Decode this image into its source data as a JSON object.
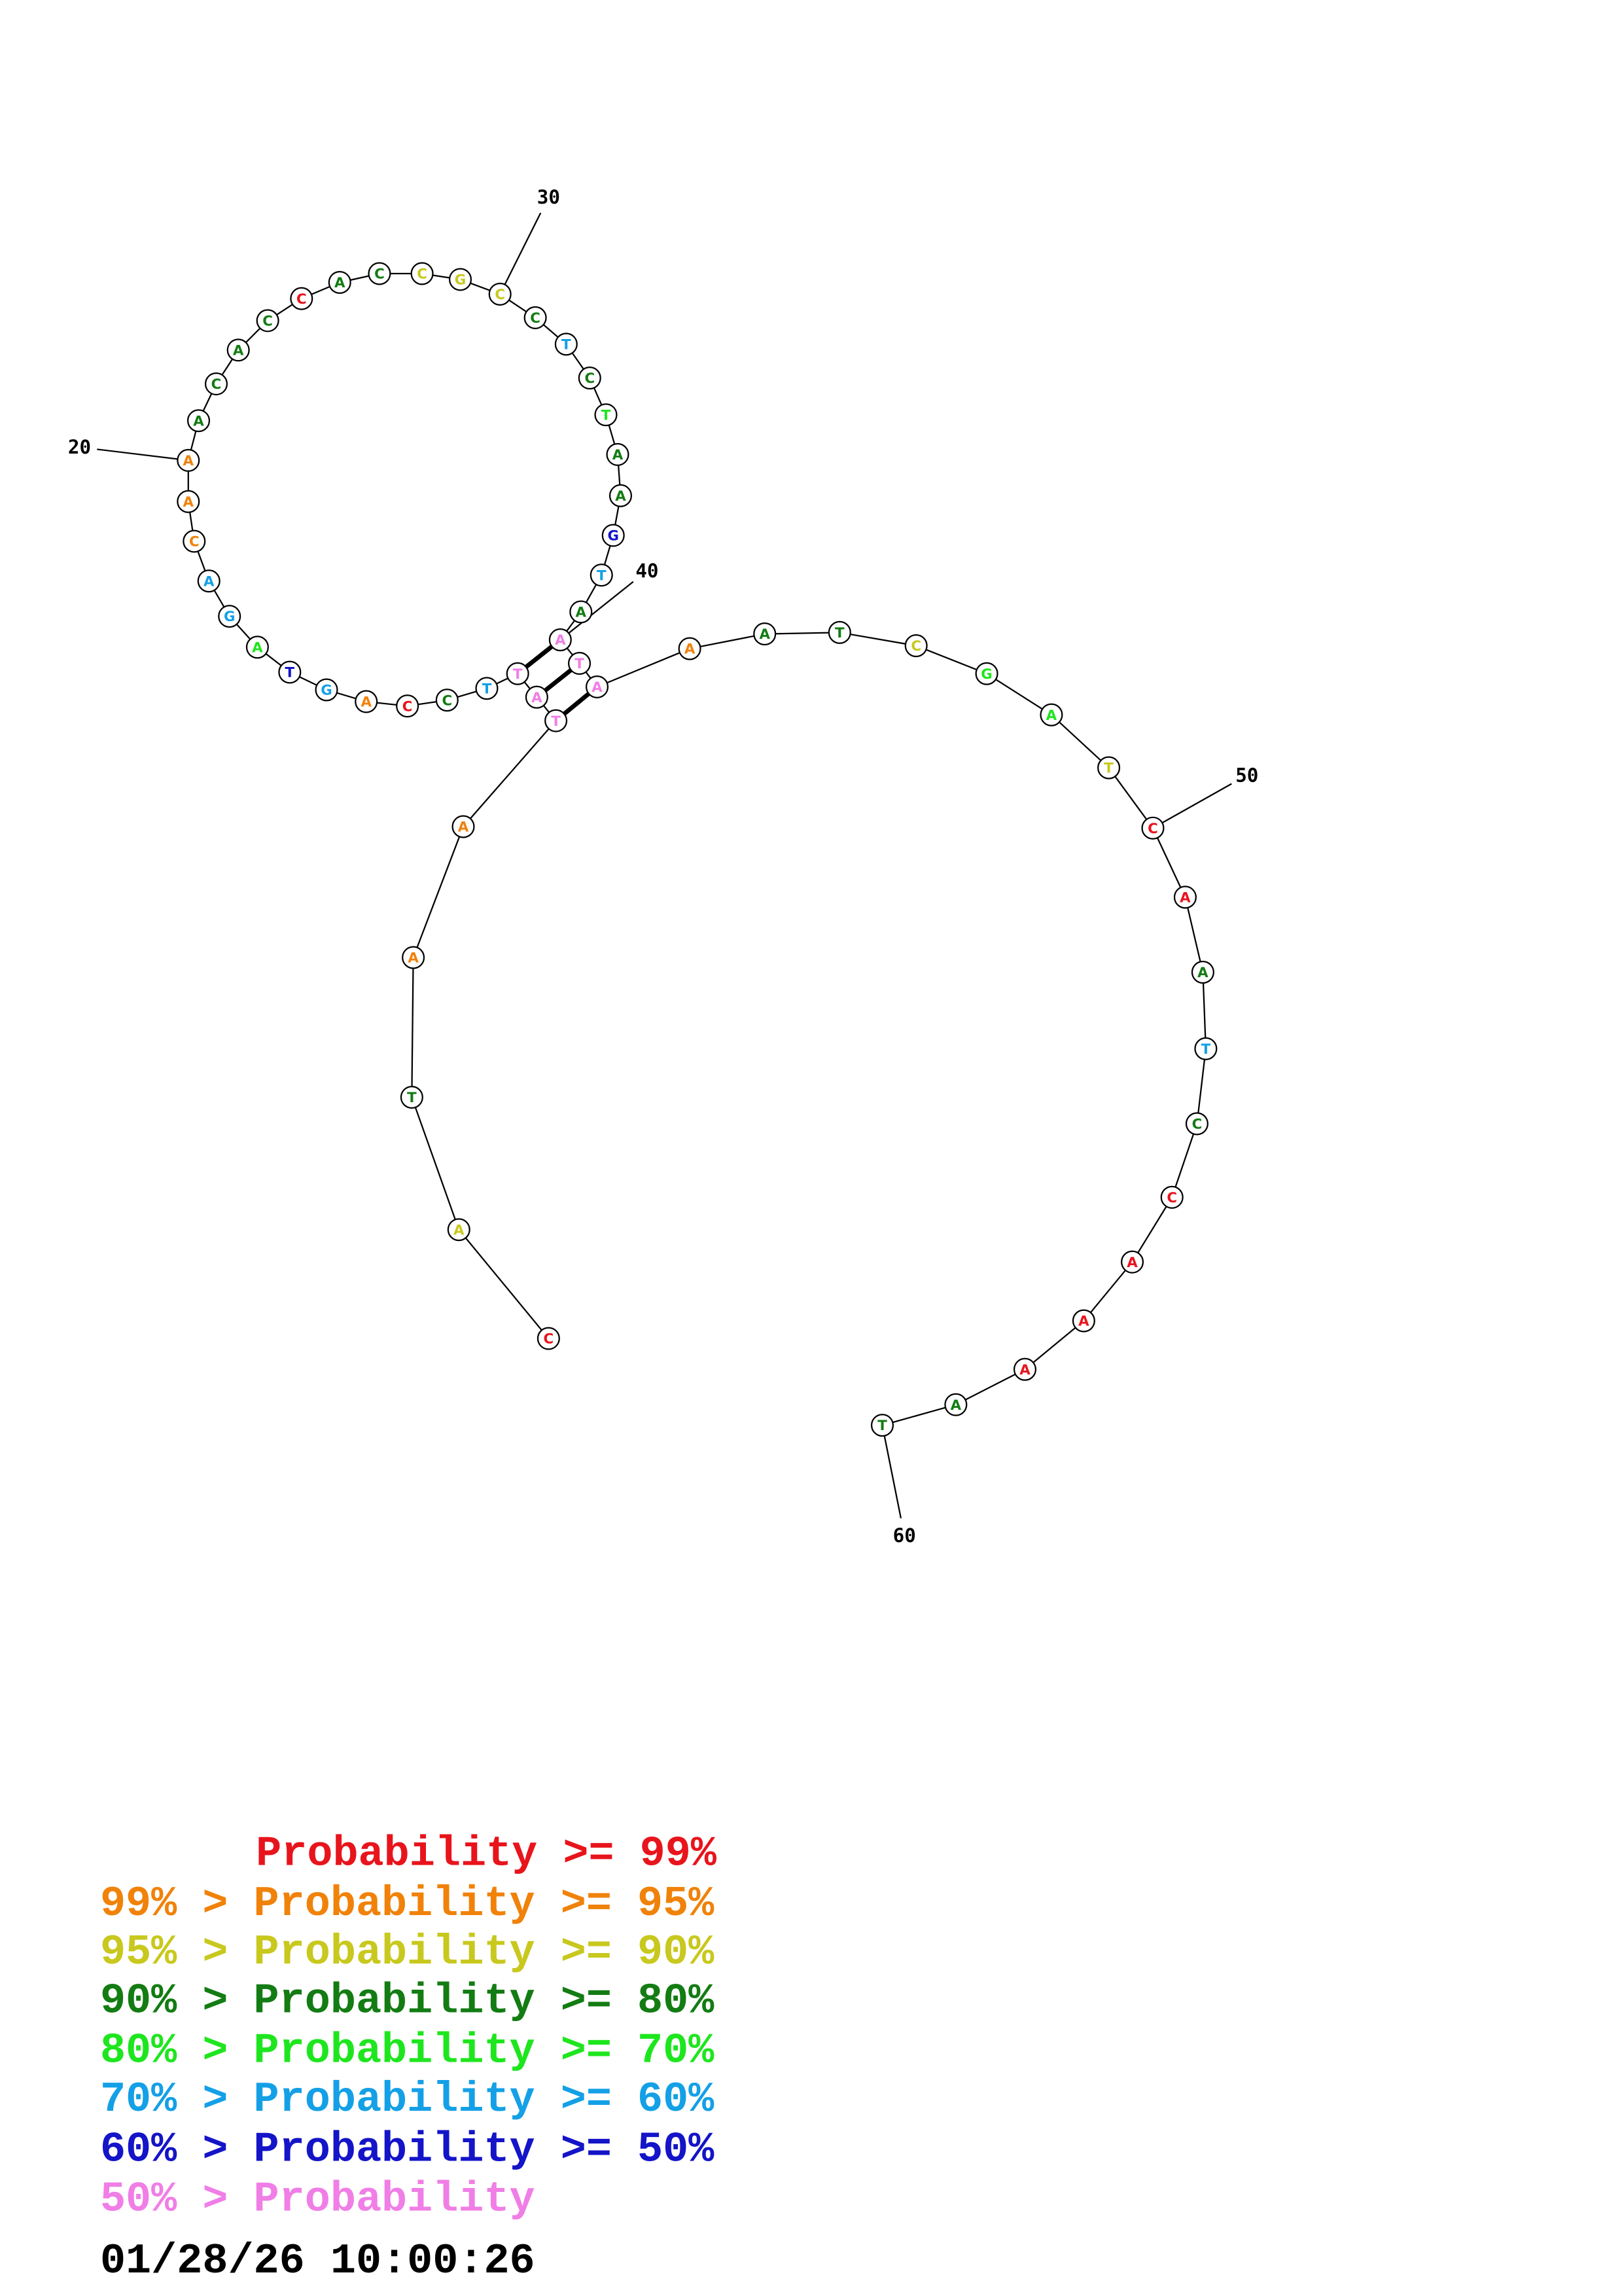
{
  "structure": {
    "nucleotides": [
      {
        "base": "C",
        "color": "#e8141c"
      },
      {
        "base": "A",
        "color": "#c8c81e"
      },
      {
        "base": "T",
        "color": "#137c13"
      },
      {
        "base": "A",
        "color": "#f0820a"
      },
      {
        "base": "A",
        "color": "#f0820a"
      },
      {
        "base": "T",
        "color": "#f07ee6"
      },
      {
        "base": "A",
        "color": "#f07ee6"
      },
      {
        "base": "T",
        "color": "#f07ee6"
      },
      {
        "base": "T",
        "color": "#14a0e6"
      },
      {
        "base": "C",
        "color": "#137c13"
      },
      {
        "base": "C",
        "color": "#e8141c"
      },
      {
        "base": "A",
        "color": "#f0820a"
      },
      {
        "base": "G",
        "color": "#14a0e6"
      },
      {
        "base": "T",
        "color": "#1414c8"
      },
      {
        "base": "A",
        "color": "#1ee61e"
      },
      {
        "base": "G",
        "color": "#14a0e6"
      },
      {
        "base": "A",
        "color": "#14a0e6"
      },
      {
        "base": "C",
        "color": "#f0820a"
      },
      {
        "base": "A",
        "color": "#f0820a"
      },
      {
        "base": "A",
        "color": "#f0820a"
      },
      {
        "base": "A",
        "color": "#137c13"
      },
      {
        "base": "C",
        "color": "#137c13"
      },
      {
        "base": "A",
        "color": "#137c13"
      },
      {
        "base": "C",
        "color": "#137c13"
      },
      {
        "base": "C",
        "color": "#e8141c"
      },
      {
        "base": "A",
        "color": "#137c13"
      },
      {
        "base": "C",
        "color": "#137c13"
      },
      {
        "base": "C",
        "color": "#c8c81e"
      },
      {
        "base": "G",
        "color": "#c8c81e"
      },
      {
        "base": "C",
        "color": "#c8c81e"
      },
      {
        "base": "C",
        "color": "#137c13"
      },
      {
        "base": "T",
        "color": "#14a0e6"
      },
      {
        "base": "C",
        "color": "#137c13"
      },
      {
        "base": "T",
        "color": "#1ee61e"
      },
      {
        "base": "A",
        "color": "#137c13"
      },
      {
        "base": "A",
        "color": "#137c13"
      },
      {
        "base": "G",
        "color": "#1414c8"
      },
      {
        "base": "T",
        "color": "#14a0e6"
      },
      {
        "base": "A",
        "color": "#137c13"
      },
      {
        "base": "A",
        "color": "#f07ee6"
      },
      {
        "base": "T",
        "color": "#f07ee6"
      },
      {
        "base": "A",
        "color": "#f07ee6"
      },
      {
        "base": "A",
        "color": "#f0820a"
      },
      {
        "base": "A",
        "color": "#137c13"
      },
      {
        "base": "T",
        "color": "#137c13"
      },
      {
        "base": "C",
        "color": "#c8c81e"
      },
      {
        "base": "G",
        "color": "#1ee61e"
      },
      {
        "base": "A",
        "color": "#1ee61e"
      },
      {
        "base": "T",
        "color": "#c8c81e"
      },
      {
        "base": "C",
        "color": "#e8141c"
      },
      {
        "base": "A",
        "color": "#e8141c"
      },
      {
        "base": "A",
        "color": "#137c13"
      },
      {
        "base": "T",
        "color": "#14a0e6"
      },
      {
        "base": "C",
        "color": "#137c13"
      },
      {
        "base": "C",
        "color": "#e8141c"
      },
      {
        "base": "A",
        "color": "#e8141c"
      },
      {
        "base": "A",
        "color": "#e8141c"
      },
      {
        "base": "A",
        "color": "#e8141c"
      },
      {
        "base": "A",
        "color": "#137c13"
      },
      {
        "base": "T",
        "color": "#137c13"
      }
    ],
    "pairs": [
      [
        6,
        42
      ],
      [
        7,
        41
      ],
      [
        8,
        40
      ]
    ],
    "position_labels": [
      20,
      30,
      40,
      50,
      60
    ]
  },
  "legend": [
    {
      "text": "Probability >= 99%",
      "color": "#e8141c"
    },
    {
      "text": "99% > Probability >= 95%",
      "color": "#f0820a"
    },
    {
      "text": "95% > Probability >= 90%",
      "color": "#c8c81e"
    },
    {
      "text": "90% > Probability >= 80%",
      "color": "#137c13"
    },
    {
      "text": "80% > Probability >= 70%",
      "color": "#1ee61e"
    },
    {
      "text": "70% > Probability >= 60%",
      "color": "#14a0e6"
    },
    {
      "text": "60% > Probability >= 50%",
      "color": "#1414c8"
    },
    {
      "text": "50% > Probability",
      "color": "#f07ee6"
    }
  ],
  "timestamp": "01/28/26 10:00:26"
}
